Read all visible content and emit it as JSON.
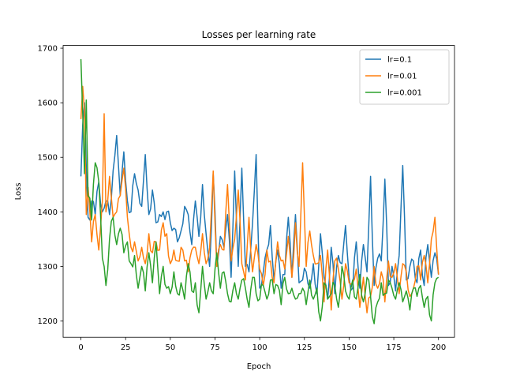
{
  "chart_data": {
    "type": "line",
    "title": "Losses per learning rate",
    "xlabel": "Epoch",
    "ylabel": "Loss",
    "xlim": [
      -9.95,
      208.95
    ],
    "ylim": [
      1170,
      1705
    ],
    "xticks": [
      0,
      25,
      50,
      75,
      100,
      125,
      150,
      175,
      200
    ],
    "yticks": [
      1200,
      1300,
      1400,
      1500,
      1600,
      1700
    ],
    "grid": false,
    "legend": "top-right",
    "series": [
      {
        "name": "lr=0.1",
        "color": "#1f77b4",
        "anchors": [
          [
            0,
            1465
          ],
          [
            1,
            1560
          ],
          [
            2,
            1600
          ],
          [
            3,
            1480
          ],
          [
            4,
            1390
          ],
          [
            5,
            1385
          ],
          [
            6,
            1420
          ],
          [
            8,
            1395
          ],
          [
            10,
            1455
          ],
          [
            12,
            1400
          ],
          [
            14,
            1420
          ],
          [
            16,
            1395
          ],
          [
            18,
            1475
          ],
          [
            20,
            1540
          ],
          [
            22,
            1430
          ],
          [
            24,
            1510
          ],
          [
            26,
            1420
          ],
          [
            28,
            1400
          ],
          [
            30,
            1470
          ],
          [
            32,
            1440
          ],
          [
            34,
            1410
          ],
          [
            36,
            1505
          ],
          [
            38,
            1395
          ],
          [
            40,
            1440
          ],
          [
            42,
            1380
          ],
          [
            44,
            1395
          ],
          [
            46,
            1400
          ],
          [
            48,
            1400
          ],
          [
            50,
            1380
          ],
          [
            52,
            1370
          ],
          [
            54,
            1345
          ],
          [
            56,
            1365
          ],
          [
            58,
            1410
          ],
          [
            60,
            1395
          ],
          [
            62,
            1340
          ],
          [
            64,
            1420
          ],
          [
            66,
            1355
          ],
          [
            68,
            1450
          ],
          [
            70,
            1360
          ],
          [
            72,
            1300
          ],
          [
            74,
            1470
          ],
          [
            76,
            1300
          ],
          [
            78,
            1355
          ],
          [
            80,
            1335
          ],
          [
            82,
            1395
          ],
          [
            84,
            1280
          ],
          [
            86,
            1475
          ],
          [
            88,
            1300
          ],
          [
            90,
            1480
          ],
          [
            92,
            1300
          ],
          [
            94,
            1290
          ],
          [
            96,
            1380
          ],
          [
            98,
            1505
          ],
          [
            100,
            1260
          ],
          [
            102,
            1290
          ],
          [
            104,
            1330
          ],
          [
            106,
            1375
          ],
          [
            108,
            1275
          ],
          [
            110,
            1330
          ],
          [
            112,
            1260
          ],
          [
            114,
            1285
          ],
          [
            116,
            1390
          ],
          [
            118,
            1280
          ],
          [
            120,
            1395
          ],
          [
            122,
            1270
          ],
          [
            124,
            1275
          ],
          [
            126,
            1290
          ],
          [
            128,
            1260
          ],
          [
            130,
            1305
          ],
          [
            132,
            1250
          ],
          [
            134,
            1360
          ],
          [
            136,
            1280
          ],
          [
            138,
            1240
          ],
          [
            140,
            1335
          ],
          [
            142,
            1250
          ],
          [
            144,
            1320
          ],
          [
            146,
            1305
          ],
          [
            148,
            1375
          ],
          [
            150,
            1280
          ],
          [
            152,
            1260
          ],
          [
            154,
            1345
          ],
          [
            156,
            1260
          ],
          [
            158,
            1340
          ],
          [
            160,
            1290
          ],
          [
            162,
            1465
          ],
          [
            164,
            1265
          ],
          [
            166,
            1315
          ],
          [
            168,
            1310
          ],
          [
            170,
            1460
          ],
          [
            172,
            1265
          ],
          [
            174,
            1300
          ],
          [
            176,
            1255
          ],
          [
            178,
            1320
          ],
          [
            180,
            1485
          ],
          [
            182,
            1275
          ],
          [
            184,
            1300
          ],
          [
            186,
            1310
          ],
          [
            188,
            1270
          ],
          [
            190,
            1330
          ],
          [
            192,
            1265
          ],
          [
            194,
            1340
          ],
          [
            196,
            1280
          ],
          [
            198,
            1325
          ],
          [
            200,
            1285
          ]
        ]
      },
      {
        "name": "lr=0.01",
        "color": "#ff7f0e",
        "anchors": [
          [
            0,
            1570
          ],
          [
            1,
            1630
          ],
          [
            2,
            1585
          ],
          [
            3,
            1395
          ],
          [
            4,
            1445
          ],
          [
            5,
            1400
          ],
          [
            6,
            1345
          ],
          [
            8,
            1395
          ],
          [
            10,
            1330
          ],
          [
            12,
            1420
          ],
          [
            13,
            1580
          ],
          [
            14,
            1400
          ],
          [
            16,
            1465
          ],
          [
            18,
            1390
          ],
          [
            20,
            1400
          ],
          [
            22,
            1430
          ],
          [
            24,
            1480
          ],
          [
            26,
            1390
          ],
          [
            28,
            1335
          ],
          [
            30,
            1345
          ],
          [
            32,
            1310
          ],
          [
            34,
            1335
          ],
          [
            36,
            1305
          ],
          [
            38,
            1360
          ],
          [
            40,
            1325
          ],
          [
            42,
            1345
          ],
          [
            44,
            1330
          ],
          [
            46,
            1380
          ],
          [
            48,
            1360
          ],
          [
            50,
            1305
          ],
          [
            52,
            1330
          ],
          [
            54,
            1310
          ],
          [
            56,
            1335
          ],
          [
            58,
            1310
          ],
          [
            60,
            1290
          ],
          [
            62,
            1330
          ],
          [
            64,
            1335
          ],
          [
            66,
            1305
          ],
          [
            68,
            1360
          ],
          [
            70,
            1305
          ],
          [
            72,
            1335
          ],
          [
            74,
            1475
          ],
          [
            76,
            1300
          ],
          [
            78,
            1340
          ],
          [
            80,
            1330
          ],
          [
            82,
            1450
          ],
          [
            84,
            1310
          ],
          [
            86,
            1350
          ],
          [
            88,
            1440
          ],
          [
            90,
            1305
          ],
          [
            92,
            1275
          ],
          [
            94,
            1390
          ],
          [
            96,
            1290
          ],
          [
            98,
            1340
          ],
          [
            100,
            1295
          ],
          [
            102,
            1265
          ],
          [
            104,
            1330
          ],
          [
            106,
            1310
          ],
          [
            108,
            1270
          ],
          [
            110,
            1345
          ],
          [
            112,
            1310
          ],
          [
            114,
            1295
          ],
          [
            116,
            1355
          ],
          [
            118,
            1280
          ],
          [
            120,
            1380
          ],
          [
            122,
            1300
          ],
          [
            124,
            1490
          ],
          [
            126,
            1300
          ],
          [
            128,
            1365
          ],
          [
            130,
            1320
          ],
          [
            132,
            1305
          ],
          [
            134,
            1320
          ],
          [
            136,
            1235
          ],
          [
            138,
            1330
          ],
          [
            140,
            1220
          ],
          [
            142,
            1310
          ],
          [
            144,
            1295
          ],
          [
            146,
            1240
          ],
          [
            148,
            1305
          ],
          [
            150,
            1270
          ],
          [
            152,
            1270
          ],
          [
            154,
            1295
          ],
          [
            156,
            1225
          ],
          [
            158,
            1280
          ],
          [
            160,
            1215
          ],
          [
            162,
            1245
          ],
          [
            164,
            1300
          ],
          [
            166,
            1260
          ],
          [
            168,
            1290
          ],
          [
            170,
            1235
          ],
          [
            172,
            1310
          ],
          [
            174,
            1280
          ],
          [
            176,
            1305
          ],
          [
            178,
            1250
          ],
          [
            180,
            1305
          ],
          [
            182,
            1290
          ],
          [
            184,
            1245
          ],
          [
            186,
            1260
          ],
          [
            188,
            1300
          ],
          [
            190,
            1275
          ],
          [
            192,
            1320
          ],
          [
            194,
            1270
          ],
          [
            196,
            1350
          ],
          [
            198,
            1390
          ],
          [
            200,
            1285
          ]
        ]
      },
      {
        "name": "lr=0.001",
        "color": "#2ca02c",
        "anchors": [
          [
            0,
            1680
          ],
          [
            1,
            1580
          ],
          [
            2,
            1470
          ],
          [
            3,
            1605
          ],
          [
            4,
            1430
          ],
          [
            5,
            1425
          ],
          [
            6,
            1385
          ],
          [
            8,
            1490
          ],
          [
            10,
            1455
          ],
          [
            12,
            1315
          ],
          [
            14,
            1265
          ],
          [
            16,
            1350
          ],
          [
            18,
            1390
          ],
          [
            20,
            1340
          ],
          [
            22,
            1370
          ],
          [
            24,
            1325
          ],
          [
            26,
            1345
          ],
          [
            28,
            1305
          ],
          [
            30,
            1320
          ],
          [
            32,
            1260
          ],
          [
            34,
            1300
          ],
          [
            36,
            1255
          ],
          [
            38,
            1325
          ],
          [
            40,
            1270
          ],
          [
            42,
            1345
          ],
          [
            44,
            1250
          ],
          [
            46,
            1300
          ],
          [
            48,
            1260
          ],
          [
            50,
            1250
          ],
          [
            52,
            1290
          ],
          [
            54,
            1250
          ],
          [
            56,
            1270
          ],
          [
            58,
            1240
          ],
          [
            60,
            1305
          ],
          [
            62,
            1255
          ],
          [
            64,
            1270
          ],
          [
            66,
            1215
          ],
          [
            68,
            1300
          ],
          [
            70,
            1240
          ],
          [
            72,
            1270
          ],
          [
            74,
            1250
          ],
          [
            76,
            1325
          ],
          [
            78,
            1260
          ],
          [
            80,
            1290
          ],
          [
            82,
            1250
          ],
          [
            84,
            1235
          ],
          [
            86,
            1270
          ],
          [
            88,
            1240
          ],
          [
            90,
            1275
          ],
          [
            92,
            1260
          ],
          [
            94,
            1225
          ],
          [
            96,
            1280
          ],
          [
            98,
            1250
          ],
          [
            100,
            1240
          ],
          [
            102,
            1265
          ],
          [
            104,
            1240
          ],
          [
            106,
            1275
          ],
          [
            108,
            1250
          ],
          [
            110,
            1265
          ],
          [
            112,
            1230
          ],
          [
            114,
            1280
          ],
          [
            116,
            1250
          ],
          [
            118,
            1260
          ],
          [
            120,
            1240
          ],
          [
            122,
            1250
          ],
          [
            124,
            1260
          ],
          [
            126,
            1230
          ],
          [
            128,
            1275
          ],
          [
            130,
            1240
          ],
          [
            132,
            1260
          ],
          [
            134,
            1200
          ],
          [
            136,
            1270
          ],
          [
            138,
            1240
          ],
          [
            140,
            1250
          ],
          [
            142,
            1265
          ],
          [
            144,
            1225
          ],
          [
            146,
            1300
          ],
          [
            148,
            1255
          ],
          [
            150,
            1240
          ],
          [
            152,
            1275
          ],
          [
            154,
            1240
          ],
          [
            156,
            1285
          ],
          [
            158,
            1235
          ],
          [
            160,
            1280
          ],
          [
            162,
            1245
          ],
          [
            164,
            1195
          ],
          [
            166,
            1235
          ],
          [
            168,
            1270
          ],
          [
            170,
            1250
          ],
          [
            172,
            1275
          ],
          [
            174,
            1260
          ],
          [
            176,
            1240
          ],
          [
            178,
            1270
          ],
          [
            180,
            1235
          ],
          [
            182,
            1255
          ],
          [
            184,
            1220
          ],
          [
            186,
            1260
          ],
          [
            188,
            1245
          ],
          [
            190,
            1265
          ],
          [
            192,
            1225
          ],
          [
            194,
            1245
          ],
          [
            196,
            1200
          ],
          [
            198,
            1270
          ],
          [
            200,
            1280
          ]
        ]
      }
    ]
  }
}
